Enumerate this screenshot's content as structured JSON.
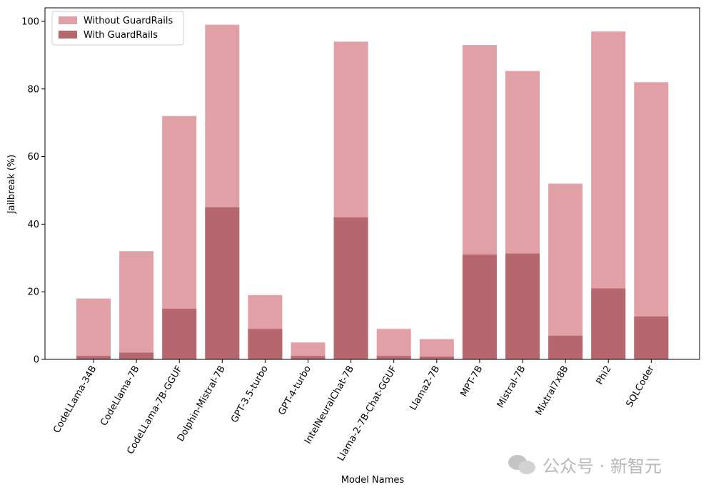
{
  "chart_data": {
    "type": "bar",
    "xlabel": "Model Names",
    "ylabel": "Jailbreak (%)",
    "ylim": [
      0,
      104
    ],
    "yticks": [
      0,
      20,
      40,
      60,
      80,
      100
    ],
    "categories": [
      "CodeLLama-34B",
      "CodeLlama-7B",
      "CodeLLama-7B-GGUF",
      "Dolphin-Mistral-7B",
      "GPT-3.5-turbo",
      "GPT-4-turbo",
      "IntelNeuralChat-7B",
      "Llama-2-7B-Chat-GGUF",
      "Llama2-7B",
      "MPT-7B",
      "Mistral-7B",
      "Mixtral7x8B",
      "Phi2",
      "SQLCoder"
    ],
    "series": [
      {
        "name": "Without GuardRails",
        "color": "#e0a0a6",
        "values": [
          18,
          32,
          72,
          99,
          19,
          5,
          94,
          9,
          6,
          93,
          85.3,
          52,
          97,
          82
        ]
      },
      {
        "name": "With GuardRails",
        "color": "#b5676d",
        "values": [
          1,
          2,
          15,
          45,
          9,
          1,
          42,
          1,
          0.8,
          31,
          31.3,
          7,
          21,
          12.7
        ]
      }
    ],
    "legend_position": "top-left",
    "grid": false
  },
  "watermark": {
    "text": "公众号 · 新智元",
    "icon": "wechat-icon"
  }
}
